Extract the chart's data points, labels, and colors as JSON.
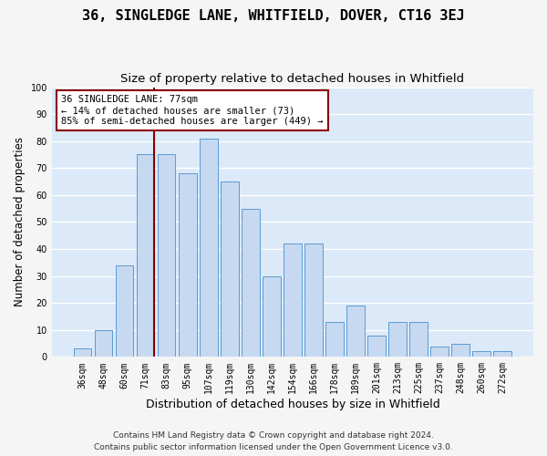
{
  "title": "36, SINGLEDGE LANE, WHITFIELD, DOVER, CT16 3EJ",
  "subtitle": "Size of property relative to detached houses in Whitfield",
  "xlabel": "Distribution of detached houses by size in Whitfield",
  "ylabel": "Number of detached properties",
  "categories": [
    "36sqm",
    "48sqm",
    "60sqm",
    "71sqm",
    "83sqm",
    "95sqm",
    "107sqm",
    "119sqm",
    "130sqm",
    "142sqm",
    "154sqm",
    "166sqm",
    "178sqm",
    "189sqm",
    "201sqm",
    "213sqm",
    "225sqm",
    "237sqm",
    "248sqm",
    "260sqm",
    "272sqm"
  ],
  "values": [
    3,
    10,
    34,
    75,
    75,
    68,
    81,
    65,
    55,
    30,
    42,
    42,
    13,
    19,
    8,
    13,
    13,
    4,
    5,
    2,
    2
  ],
  "bar_color": "#c6d9f0",
  "bar_edge_color": "#5b9bd5",
  "vline_color": "#8b0000",
  "annotation_text": "36 SINGLEDGE LANE: 77sqm\n← 14% of detached houses are smaller (73)\n85% of semi-detached houses are larger (449) →",
  "annotation_box_color": "#ffffff",
  "annotation_box_edge": "#8b0000",
  "ylim": [
    0,
    100
  ],
  "footer1": "Contains HM Land Registry data © Crown copyright and database right 2024.",
  "footer2": "Contains public sector information licensed under the Open Government Licence v3.0.",
  "plot_bg_color": "#dce9f8",
  "fig_bg_color": "#f5f5f5",
  "grid_color": "#ffffff",
  "title_fontsize": 11,
  "subtitle_fontsize": 9.5,
  "xlabel_fontsize": 9,
  "ylabel_fontsize": 8.5,
  "tick_fontsize": 7,
  "annotation_fontsize": 7.5,
  "footer_fontsize": 6.5,
  "vline_pos": 3.42
}
